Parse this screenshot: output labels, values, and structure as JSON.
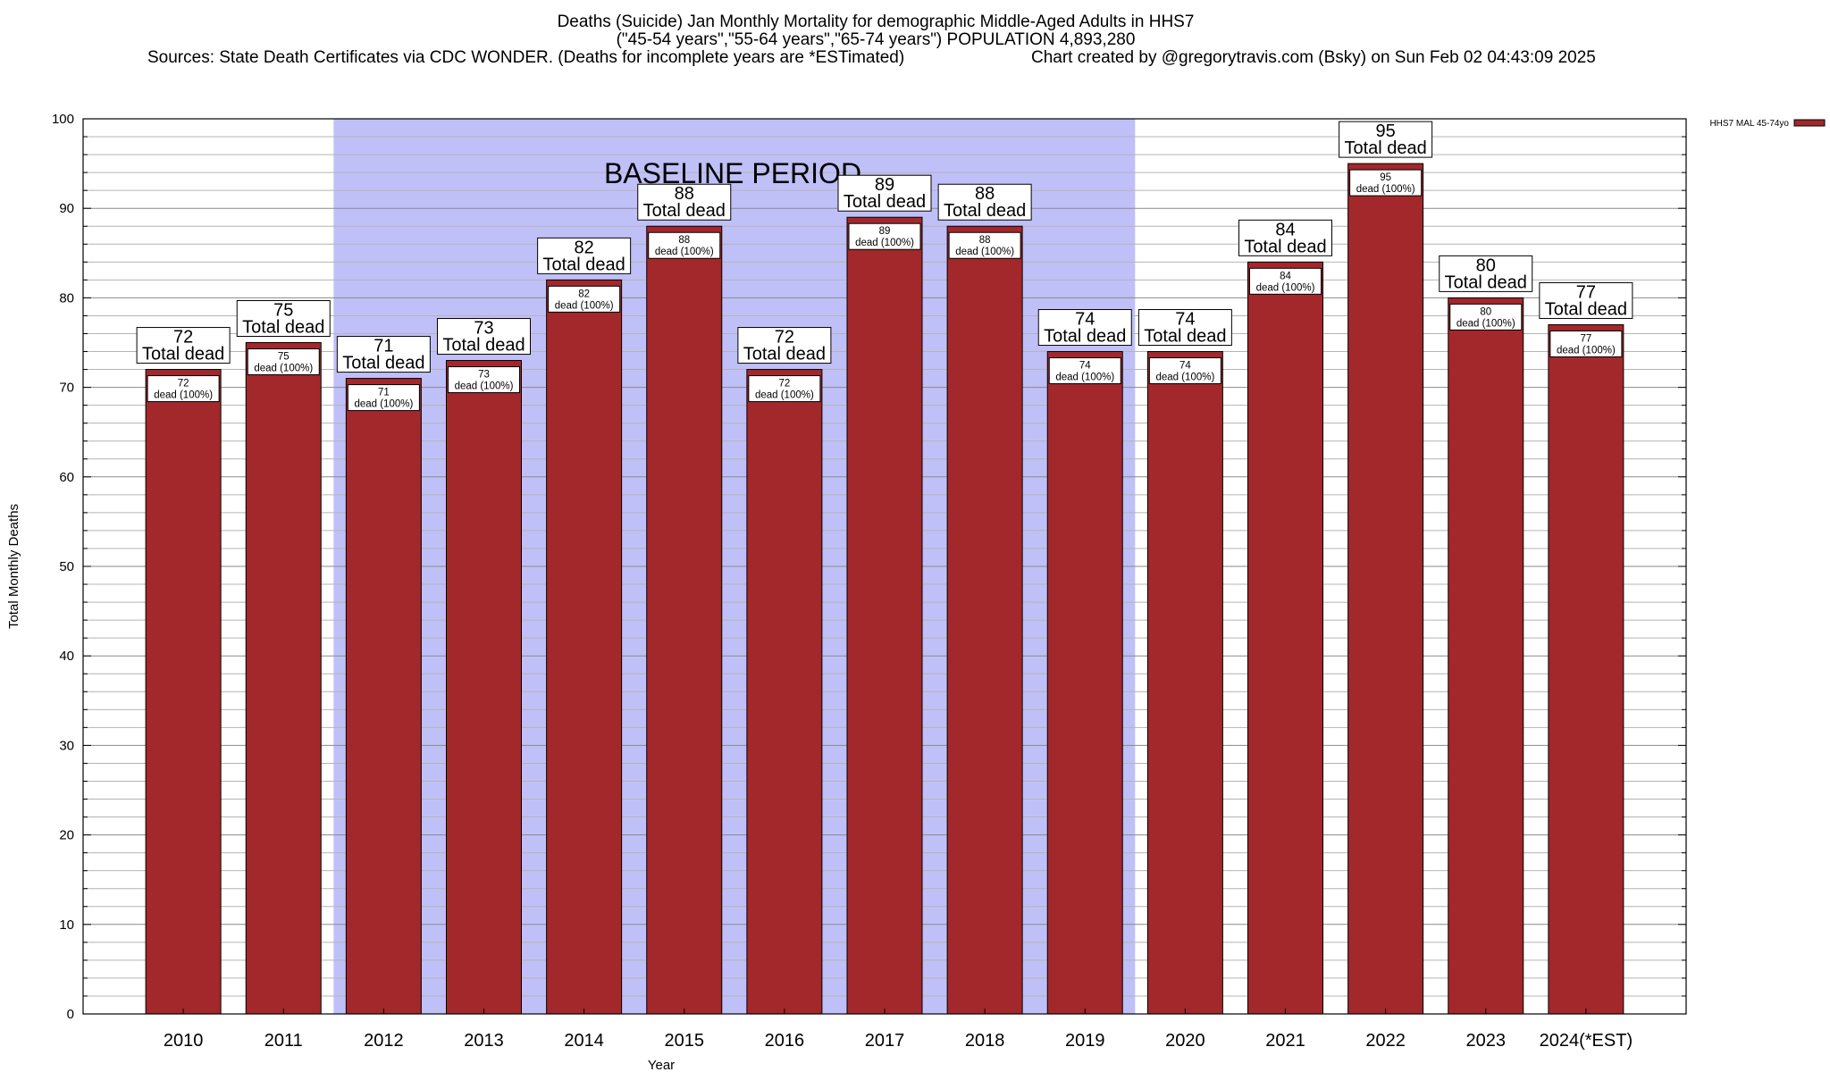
{
  "chart_data": {
    "type": "bar",
    "title": "Deaths (Suicide) Jan Monthly Mortality for demographic Middle-Aged Adults in HHS7",
    "subtitle": "(\"45-54 years\",\"55-64 years\",\"65-74 years\") POPULATION 4,893,280",
    "source_note": "Sources: State Death Certificates via CDC WONDER. (Deaths for incomplete years are *ESTimated)",
    "credit": "Chart created by @gregorytravis.com (Bsky) on Sun Feb 02 04:43:09 2025",
    "xlabel": "Year",
    "ylabel": "Total Monthly Deaths",
    "ylim": [
      0,
      100
    ],
    "yticks": [
      0,
      10,
      20,
      30,
      40,
      50,
      60,
      70,
      80,
      90,
      100
    ],
    "grid": true,
    "legend_position": "top-right",
    "categories": [
      "2010",
      "2011",
      "2012",
      "2013",
      "2014",
      "2015",
      "2016",
      "2017",
      "2018",
      "2019",
      "2020",
      "2021",
      "2022",
      "2023",
      "2024(*EST)"
    ],
    "series": [
      {
        "name": "HHS7 MAL 45-74yo",
        "color": "#a2282b",
        "values": [
          72,
          75,
          71,
          73,
          82,
          88,
          72,
          89,
          88,
          74,
          74,
          84,
          95,
          80,
          77
        ]
      }
    ],
    "top_label_suffix": "Total dead",
    "inner_label_suffix": "dead (100%)",
    "baseline_period": {
      "label": "BASELINE PERIOD",
      "from": "2012",
      "to": "2019",
      "color": "#c0c0f8"
    }
  }
}
